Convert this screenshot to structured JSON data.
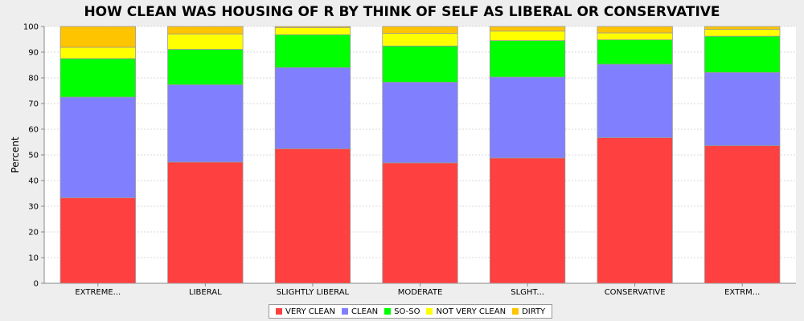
{
  "chart_data": {
    "type": "bar",
    "stacked": true,
    "title": "HOW CLEAN WAS HOUSING OF R BY THINK OF SELF AS LIBERAL OR CONSERVATIVE",
    "xlabel": "",
    "ylabel": "Percent",
    "ylim": [
      0,
      100
    ],
    "yticks": [
      0,
      10,
      20,
      30,
      40,
      50,
      60,
      70,
      80,
      90,
      100
    ],
    "grid": true,
    "legend_position": "bottom",
    "categories": [
      "EXTREME...",
      "LIBERAL",
      "SLIGHTLY LIBERAL",
      "MODERATE",
      "SLGHT...",
      "CONSERVATIVE",
      "EXTRM..."
    ],
    "series": [
      {
        "name": "VERY CLEAN",
        "color": "#ff4040",
        "values": [
          33.3,
          47.2,
          52.4,
          46.9,
          48.8,
          56.7,
          53.6
        ]
      },
      {
        "name": "CLEAN",
        "color": "#8080ff",
        "values": [
          39.2,
          30.1,
          31.6,
          31.4,
          31.5,
          28.6,
          28.5
        ]
      },
      {
        "name": "SO-SO",
        "color": "#00ff00",
        "values": [
          15.0,
          13.8,
          12.8,
          14.1,
          14.2,
          9.5,
          14.1
        ]
      },
      {
        "name": "NOT VERY CLEAN",
        "color": "#ffff00",
        "values": [
          4.4,
          6.0,
          2.7,
          4.9,
          3.7,
          2.7,
          2.7
        ]
      },
      {
        "name": "DIRTY",
        "color": "#ffc400",
        "values": [
          8.1,
          2.9,
          0.5,
          2.7,
          1.8,
          2.5,
          1.1
        ]
      }
    ]
  }
}
